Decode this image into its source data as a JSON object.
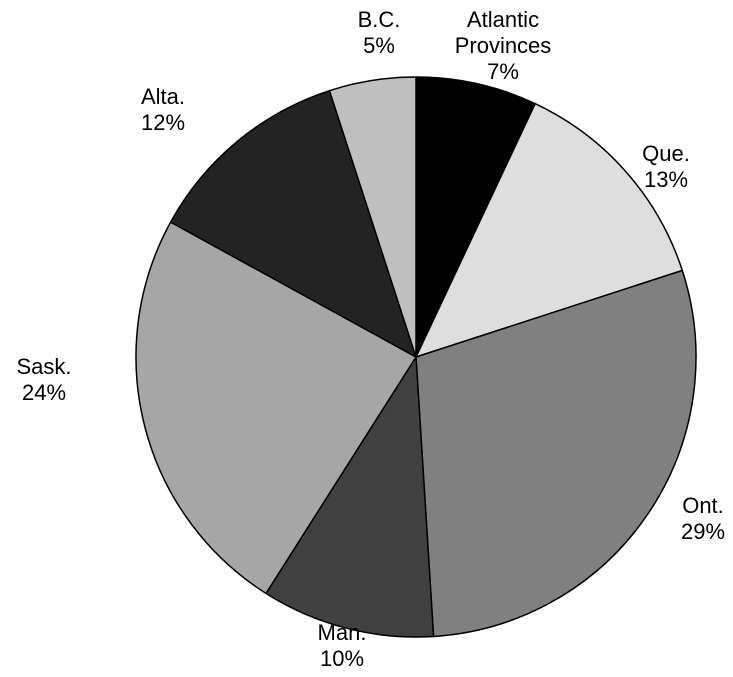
{
  "chart_data": {
    "type": "pie",
    "title": "",
    "slices": [
      {
        "label_lines": [
          "Atlantic",
          "Provinces"
        ],
        "value_label": "7%",
        "value": 7,
        "color": "#000000"
      },
      {
        "label_lines": [
          "Que."
        ],
        "value_label": "13%",
        "value": 13,
        "color": "#dedede"
      },
      {
        "label_lines": [
          "Ont."
        ],
        "value_label": "29%",
        "value": 29,
        "color": "#808080"
      },
      {
        "label_lines": [
          "Man."
        ],
        "value_label": "10%",
        "value": 10,
        "color": "#404040"
      },
      {
        "label_lines": [
          "Sask."
        ],
        "value_label": "24%",
        "value": 24,
        "color": "#a6a6a6"
      },
      {
        "label_lines": [
          "Alta."
        ],
        "value_label": "12%",
        "value": 12,
        "color": "#232323"
      },
      {
        "label_lines": [
          "B.C."
        ],
        "value_label": "5%",
        "value": 5,
        "color": "#bfbfbf"
      }
    ],
    "start": "top",
    "direction": "clockwise",
    "legend": "none"
  }
}
